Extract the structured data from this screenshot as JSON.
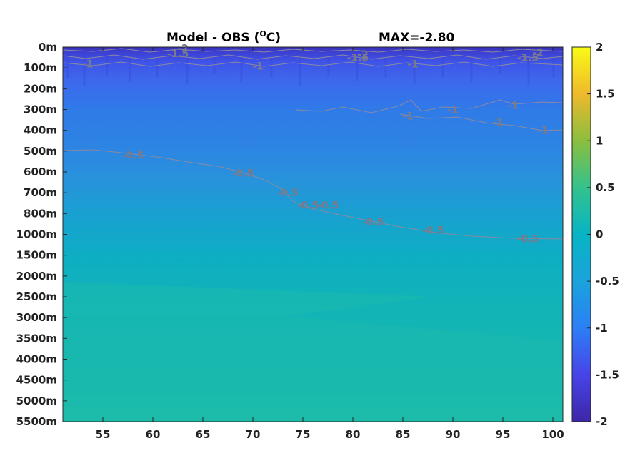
{
  "chart_data": {
    "type": "heatmap",
    "title_left": "Model - OBS (",
    "title_sup": "O",
    "title_right": "C)",
    "title_max": "MAX=-2.80",
    "x_ticks": [
      55,
      60,
      65,
      70,
      75,
      80,
      85,
      90,
      95,
      100
    ],
    "x_range": [
      51,
      101
    ],
    "y_tick_labels": [
      "0m",
      "100m",
      "200m",
      "300m",
      "400m",
      "500m",
      "600m",
      "700m",
      "800m",
      "1000m",
      "1500m",
      "2000m",
      "2500m",
      "3000m",
      "3500m",
      "4000m",
      "4500m",
      "5000m",
      "5500m"
    ],
    "colorbar": {
      "range": [
        -2,
        2
      ],
      "ticks": [
        "2",
        "1.5",
        "1",
        "0.5",
        "0",
        "-0.5",
        "-1",
        "-1.5",
        "-2"
      ],
      "colormap": "parula"
    },
    "contour_labels": [
      {
        "text": "-2",
        "x": 63.0,
        "level": 0.05
      },
      {
        "text": "-1.5",
        "x": 62.5,
        "level": 0.3
      },
      {
        "text": "-1",
        "x": 53.5,
        "level": 0.8
      },
      {
        "text": "-1",
        "x": 70.5,
        "level": 0.9
      },
      {
        "text": "-2",
        "x": 81.0,
        "level": 0.35
      },
      {
        "text": "-1.5",
        "x": 80.5,
        "level": 0.5
      },
      {
        "text": "-1",
        "x": 86.0,
        "level": 0.8
      },
      {
        "text": "-2",
        "x": 98.5,
        "level": 0.25
      },
      {
        "text": "-1.5",
        "x": 97.5,
        "level": 0.5
      },
      {
        "text": "-1",
        "x": 90.0,
        "level": 3.0
      },
      {
        "text": "-1",
        "x": 94.5,
        "level": 3.6
      },
      {
        "text": "-1",
        "x": 96.0,
        "level": 2.8
      },
      {
        "text": "-1",
        "x": 85.5,
        "level": 3.3
      },
      {
        "text": "-1",
        "x": 99.0,
        "level": 4.0
      },
      {
        "text": "-0.5",
        "x": 58.0,
        "level": 5.2
      },
      {
        "text": "-0.5",
        "x": 69.0,
        "level": 6.05
      },
      {
        "text": "-0.5",
        "x": 73.5,
        "level": 7.0
      },
      {
        "text": "-0.5",
        "x": 75.5,
        "level": 7.6
      },
      {
        "text": "-0.5",
        "x": 77.5,
        "level": 7.6
      },
      {
        "text": "-0.5",
        "x": 82.0,
        "level": 8.4
      },
      {
        "text": "-0.5",
        "x": 88.0,
        "level": 8.8
      },
      {
        "text": "-0.5",
        "x": 97.5,
        "level": 9.2
      }
    ]
  }
}
